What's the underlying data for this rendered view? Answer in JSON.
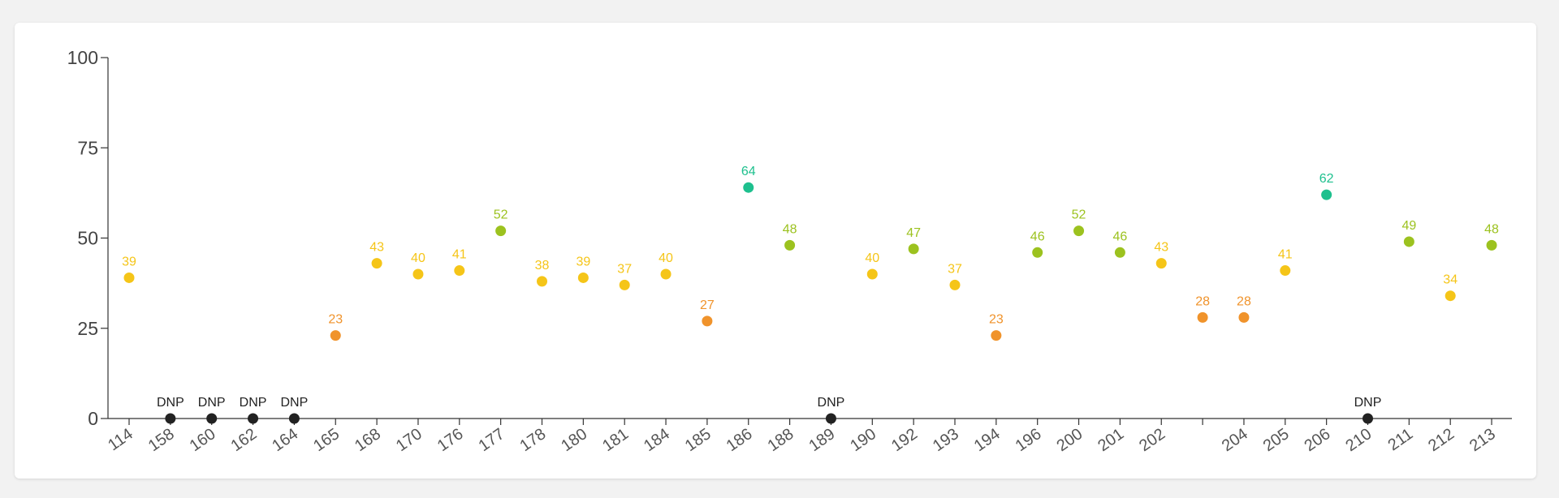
{
  "chart_data": {
    "type": "scatter",
    "title": "",
    "xlabel": "",
    "ylabel": "",
    "ylim": [
      0,
      100
    ],
    "yticks": [
      0,
      25,
      50,
      75,
      100
    ],
    "grid": false,
    "legend": "none",
    "dnp_label": "DNP",
    "categories": [
      "114",
      "158",
      "160",
      "162",
      "164",
      "165",
      "168",
      "170",
      "176",
      "177",
      "178",
      "180",
      "181",
      "184",
      "185",
      "186",
      "188",
      "189",
      "190",
      "192",
      "193",
      "194",
      "196",
      "200",
      "201",
      "202",
      "",
      "204",
      "205",
      "206",
      "210",
      "211",
      "212",
      "213"
    ],
    "values": [
      39,
      "DNP",
      "DNP",
      "DNP",
      "DNP",
      23,
      43,
      40,
      41,
      52,
      38,
      39,
      37,
      40,
      27,
      64,
      48,
      "DNP",
      40,
      47,
      37,
      23,
      46,
      52,
      46,
      43,
      28,
      28,
      41,
      62,
      "DNP",
      49,
      34,
      48
    ],
    "color_scale": {
      "dnp": "#222222",
      "below_30": "#f0932b",
      "30_to_44": "#f5c518",
      "45_to_59": "#9cc21f",
      "60_plus": "#1ec08e"
    }
  }
}
